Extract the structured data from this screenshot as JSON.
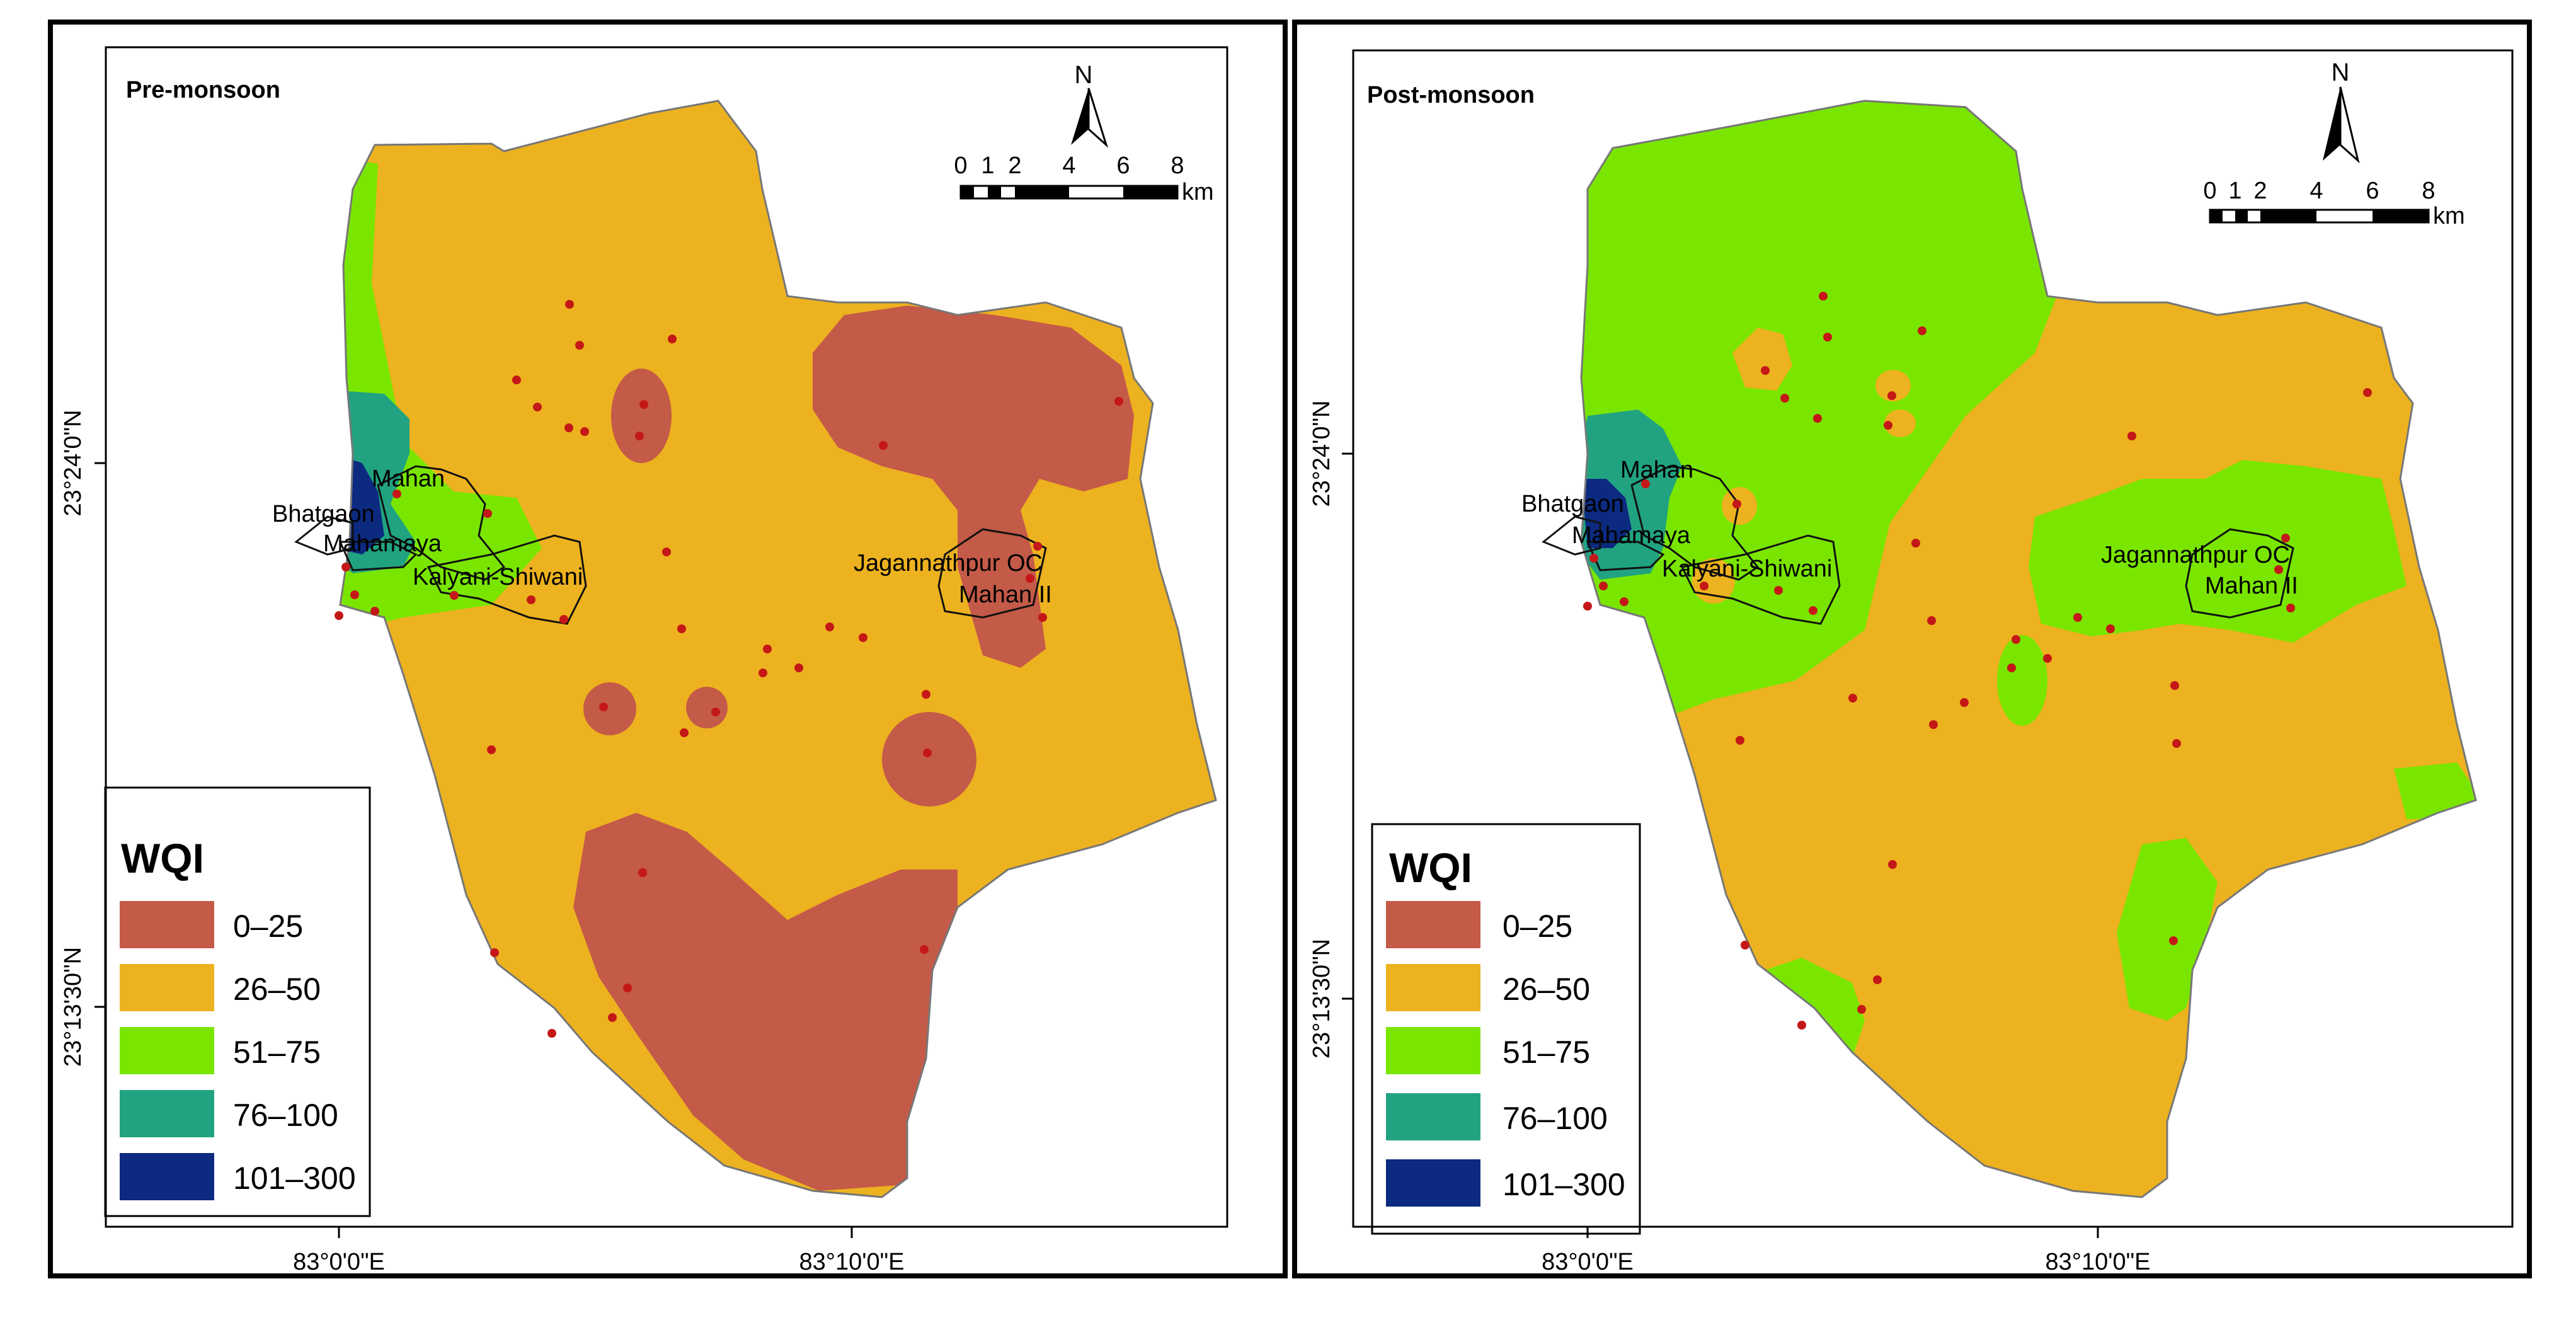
{
  "colors": {
    "c0_25": "#C45A48",
    "c26_50": "#EDB21F",
    "c51_75": "#7AE600",
    "c76_100": "#21A381",
    "c101_300": "#0B2A80",
    "site": "#C41818",
    "frame": "#000000"
  },
  "panels": [
    {
      "title": "Pre-monsoon",
      "legend": {
        "title": "WQI",
        "items": [
          "0–25",
          "26–50",
          "51–75",
          "76–100",
          "101–300"
        ]
      },
      "scale": {
        "ticks": [
          "0",
          "1",
          "2",
          "4",
          "6",
          "8"
        ],
        "unit": "km"
      },
      "north": "N",
      "lat_labels": [
        "23°24'0\"N",
        "23°13'30\"N"
      ],
      "lon_labels": [
        "83°0'0\"E",
        "83°10'0\"E"
      ],
      "mine_labels": [
        "Mahan",
        "Bhatgaon",
        "Mahamaya",
        "Kalyani-Shiwani",
        "Jagannathpur OC",
        "Mahan II"
      ]
    },
    {
      "title": "Post-monsoon",
      "legend": {
        "title": "WQI",
        "items": [
          "0–25",
          "26–50",
          "51–75",
          "76–100",
          "101–300"
        ]
      },
      "scale": {
        "ticks": [
          "0",
          "1",
          "2",
          "4",
          "6",
          "8"
        ],
        "unit": "km"
      },
      "north": "N",
      "lat_labels": [
        "23°24'0\"N",
        "23°13'30\"N"
      ],
      "lon_labels": [
        "83°0'0\"E",
        "83°10'0\"E"
      ],
      "mine_labels": [
        "Mahan",
        "Bhatgaon",
        "Mahamaya",
        "Kalyani-Shiwani",
        "Jagannathpur OC",
        "Mahan II"
      ]
    }
  ]
}
